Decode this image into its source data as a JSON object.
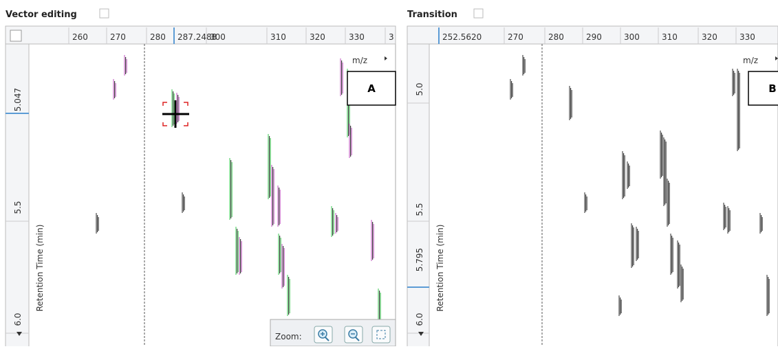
{
  "panels": [
    {
      "title": "Vector editing",
      "label": "A",
      "x_unit": "m/z",
      "y_title": "Retention Time (min)",
      "x_ticks": [
        "260",
        "270",
        "280",
        "287.2488",
        "300",
        "310",
        "320",
        "330",
        "3"
      ],
      "y_ticks": [
        "5.047",
        "5.5",
        "6.0"
      ],
      "zoom_label": "Zoom:"
    },
    {
      "title": "Transition",
      "label": "B",
      "x_unit": "m/z",
      "y_title": "Retention Time (min)",
      "x_ticks": [
        "252.5620",
        "270",
        "280",
        "290",
        "300",
        "310",
        "320",
        "330"
      ],
      "y_ticks": [
        "5.0",
        "5.5",
        "5.795",
        "6.0"
      ]
    }
  ]
}
